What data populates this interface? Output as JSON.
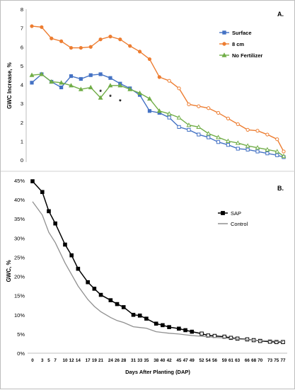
{
  "chart_data": [
    {
      "type": "line",
      "panel_label": "A.",
      "ylabel": "GWC Increase, %",
      "ylim": [
        0,
        8
      ],
      "yticks": [
        0,
        1,
        2,
        3,
        4,
        5,
        6,
        7,
        8
      ],
      "legend_position": "top-right",
      "x": [
        0,
        3,
        5,
        7,
        9,
        10,
        12,
        14,
        17,
        19,
        21,
        24,
        26,
        28,
        31,
        33,
        35,
        38,
        40,
        42,
        45,
        47,
        49,
        52,
        54,
        56,
        59,
        61,
        63,
        66,
        68,
        70,
        73,
        75,
        77
      ],
      "marked_x": [
        0,
        2,
        4,
        6,
        8,
        10,
        12,
        14,
        16,
        18,
        20,
        22,
        24,
        26,
        28,
        30,
        32,
        34,
        36,
        38,
        40,
        42,
        44,
        46,
        48,
        50,
        52,
        54,
        56,
        58,
        60,
        62,
        64,
        66,
        68,
        70,
        72,
        74,
        76
      ],
      "series": [
        {
          "name": "Surface",
          "color": "#4472C4",
          "marker": "square",
          "x": [
            0,
            3,
            6,
            9,
            12,
            15,
            18,
            21,
            24,
            27,
            30,
            33,
            36,
            39,
            42,
            45,
            48,
            51,
            54,
            57,
            60,
            63,
            66,
            69,
            72,
            75,
            77
          ],
          "values": [
            4.1,
            4.55,
            4.15,
            3.85,
            4.45,
            4.3,
            4.5,
            4.55,
            4.35,
            4.05,
            3.8,
            3.45,
            2.6,
            2.5,
            2.25,
            1.75,
            1.6,
            1.35,
            1.2,
            0.95,
            0.8,
            0.6,
            0.55,
            0.45,
            0.35,
            0.25,
            0.15
          ]
        },
        {
          "name": "8 cm",
          "color": "#ED7D31",
          "marker": "circle",
          "x": [
            0,
            3,
            6,
            9,
            12,
            15,
            18,
            21,
            24,
            27,
            30,
            33,
            36,
            39,
            42,
            45,
            48,
            51,
            54,
            57,
            60,
            63,
            66,
            69,
            72,
            75,
            77
          ],
          "values": [
            7.1,
            7.05,
            6.45,
            6.3,
            5.95,
            5.95,
            6.0,
            6.4,
            6.55,
            6.4,
            6.05,
            5.75,
            5.35,
            4.4,
            4.2,
            3.8,
            2.95,
            2.85,
            2.75,
            2.5,
            2.2,
            1.9,
            1.6,
            1.55,
            1.35,
            1.1,
            0.45
          ]
        },
        {
          "name": "No Fertilizer",
          "color": "#70AD47",
          "marker": "triangle",
          "x": [
            0,
            3,
            6,
            9,
            12,
            15,
            18,
            21,
            24,
            27,
            30,
            33,
            36,
            39,
            42,
            45,
            48,
            51,
            54,
            57,
            60,
            63,
            66,
            69,
            72,
            75,
            77
          ],
          "values": [
            4.5,
            4.55,
            4.15,
            4.1,
            3.95,
            3.75,
            3.85,
            3.3,
            3.95,
            3.95,
            3.75,
            3.55,
            3.25,
            2.6,
            2.45,
            2.25,
            1.85,
            1.75,
            1.4,
            1.2,
            1.0,
            0.9,
            0.75,
            0.65,
            0.55,
            0.45,
            0.2
          ]
        }
      ],
      "annotations": [
        {
          "text": "*",
          "x": 21,
          "y": 3.6
        },
        {
          "text": "*",
          "x": 24,
          "y": 3.35
        },
        {
          "text": "*",
          "x": 27,
          "y": 3.1
        }
      ]
    },
    {
      "type": "line",
      "panel_label": "B.",
      "ylabel": "GWC, %",
      "xlabel": "Days After Planting (DAP)",
      "ylim": [
        0,
        45
      ],
      "yticks": [
        0,
        5,
        10,
        15,
        20,
        25,
        30,
        35,
        40,
        45
      ],
      "ytick_labels": [
        "0%",
        "5%",
        "10%",
        "15%",
        "20%",
        "25%",
        "30%",
        "35%",
        "40%",
        "45%"
      ],
      "xticks": [
        0,
        3,
        5,
        7,
        10,
        12,
        14,
        17,
        19,
        21,
        24,
        26,
        28,
        31,
        33,
        35,
        38,
        40,
        42,
        45,
        47,
        49,
        52,
        54,
        56,
        59,
        61,
        63,
        66,
        68,
        70,
        73,
        75,
        77
      ],
      "legend_position": "top-right",
      "series": [
        {
          "name": "SAP",
          "color": "#000000",
          "marker": "square",
          "x": [
            0,
            3,
            5,
            7,
            10,
            12,
            14,
            17,
            19,
            21,
            24,
            26,
            28,
            31,
            33,
            35,
            38,
            40,
            42,
            45,
            47,
            49,
            52,
            54,
            56,
            59,
            61,
            63,
            66,
            68,
            70,
            73,
            75,
            77
          ],
          "values": [
            44.8,
            42.0,
            37.0,
            33.8,
            28.3,
            25.5,
            22.0,
            18.5,
            16.8,
            15.2,
            13.8,
            12.8,
            12.0,
            10.0,
            9.8,
            9.0,
            7.7,
            7.3,
            6.8,
            6.4,
            6.0,
            5.6,
            5.1,
            4.6,
            4.5,
            4.3,
            4.0,
            3.8,
            3.6,
            3.4,
            3.2,
            3.0,
            2.9,
            2.9
          ]
        },
        {
          "name": "Control",
          "color": "#909090",
          "marker": "none",
          "x": [
            0,
            3,
            5,
            7,
            10,
            12,
            14,
            17,
            19,
            21,
            24,
            26,
            28,
            31,
            33,
            35,
            38,
            40,
            42,
            45,
            47,
            49,
            52,
            54,
            56,
            59,
            61,
            63,
            66,
            68,
            70,
            73,
            75,
            77
          ],
          "values": [
            39.5,
            36.0,
            31.5,
            28.8,
            23.5,
            20.5,
            17.5,
            14.0,
            12.2,
            10.8,
            9.3,
            8.5,
            8.0,
            6.9,
            6.7,
            6.5,
            5.6,
            5.4,
            5.2,
            5.0,
            4.8,
            4.6,
            4.4,
            4.3,
            4.1,
            4.0,
            3.8,
            3.7,
            3.5,
            3.4,
            3.3,
            3.2,
            3.1,
            3.0
          ]
        }
      ]
    }
  ]
}
